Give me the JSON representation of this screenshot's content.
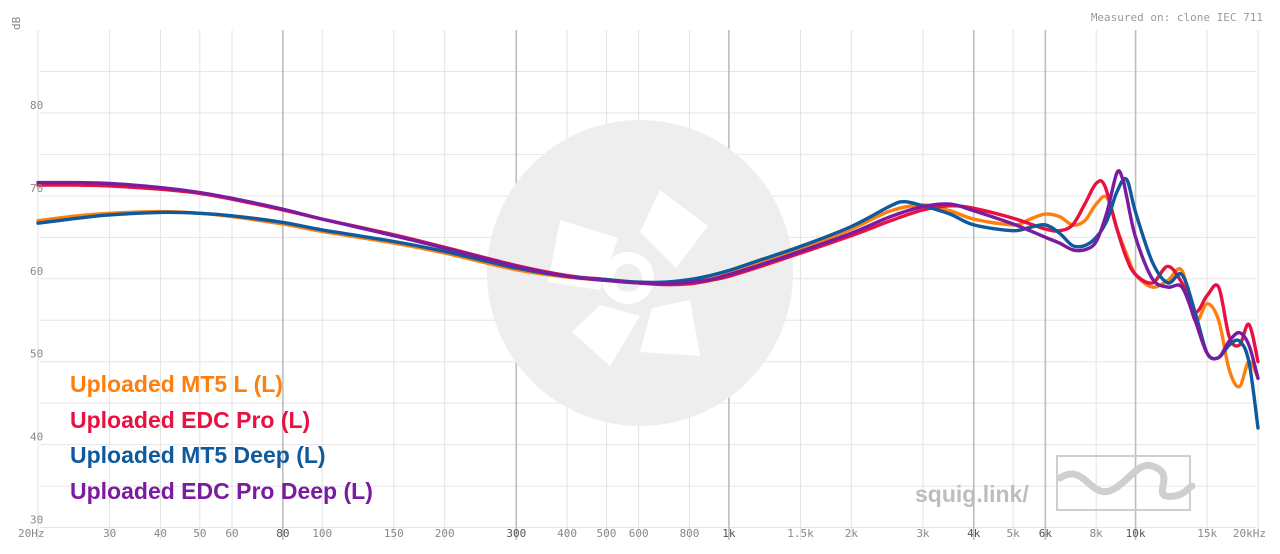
{
  "header": {
    "ylabel": "dB",
    "measured_on": "Measured on: clone IEC 711"
  },
  "brand": {
    "text": "squig.link/"
  },
  "chart_data": {
    "type": "line",
    "x_scale": "log",
    "xlim": [
      20,
      20000
    ],
    "ylim": [
      28.5,
      90
    ],
    "ylabel": "dB",
    "y_ticks": [
      30,
      40,
      50,
      60,
      70,
      80
    ],
    "x_ticks": [
      {
        "value": 20,
        "label": "20Hz",
        "bold": false
      },
      {
        "value": 30,
        "label": "30",
        "bold": false
      },
      {
        "value": 40,
        "label": "40",
        "bold": false
      },
      {
        "value": 50,
        "label": "50",
        "bold": false
      },
      {
        "value": 60,
        "label": "60",
        "bold": false
      },
      {
        "value": 80,
        "label": "80",
        "bold": true
      },
      {
        "value": 100,
        "label": "100",
        "bold": false
      },
      {
        "value": 150,
        "label": "150",
        "bold": false
      },
      {
        "value": 200,
        "label": "200",
        "bold": false
      },
      {
        "value": 300,
        "label": "300",
        "bold": true
      },
      {
        "value": 400,
        "label": "400",
        "bold": false
      },
      {
        "value": 500,
        "label": "500",
        "bold": false
      },
      {
        "value": 600,
        "label": "600",
        "bold": false
      },
      {
        "value": 800,
        "label": "800",
        "bold": false
      },
      {
        "value": 1000,
        "label": "1k",
        "bold": true
      },
      {
        "value": 1500,
        "label": "1.5k",
        "bold": false
      },
      {
        "value": 2000,
        "label": "2k",
        "bold": false
      },
      {
        "value": 3000,
        "label": "3k",
        "bold": false
      },
      {
        "value": 4000,
        "label": "4k",
        "bold": true
      },
      {
        "value": 5000,
        "label": "5k",
        "bold": false
      },
      {
        "value": 6000,
        "label": "6k",
        "bold": true
      },
      {
        "value": 8000,
        "label": "8k",
        "bold": false
      },
      {
        "value": 10000,
        "label": "10k",
        "bold": true
      },
      {
        "value": 15000,
        "label": "15k",
        "bold": false
      },
      {
        "value": 20000,
        "label": "20kHz",
        "bold": false
      }
    ],
    "series": [
      {
        "name": "Uploaded MT5 L (L)",
        "color": "#ff7f0e",
        "points": [
          [
            20,
            67
          ],
          [
            25,
            67.6
          ],
          [
            30,
            67.9
          ],
          [
            40,
            68.1
          ],
          [
            50,
            67.9
          ],
          [
            60,
            67.5
          ],
          [
            80,
            66.6
          ],
          [
            100,
            65.7
          ],
          [
            150,
            64.3
          ],
          [
            200,
            63.1
          ],
          [
            300,
            61.1
          ],
          [
            400,
            60.2
          ],
          [
            500,
            59.8
          ],
          [
            600,
            59.5
          ],
          [
            700,
            59.4
          ],
          [
            800,
            59.6
          ],
          [
            900,
            60.0
          ],
          [
            1000,
            60.6
          ],
          [
            1200,
            62.0
          ],
          [
            1500,
            63.6
          ],
          [
            2000,
            66.0
          ],
          [
            2500,
            68.2
          ],
          [
            3000,
            68.9
          ],
          [
            3500,
            68.2
          ],
          [
            4000,
            67.2
          ],
          [
            5000,
            66.5
          ],
          [
            5500,
            67.2
          ],
          [
            6000,
            67.8
          ],
          [
            6500,
            67.5
          ],
          [
            7000,
            66.5
          ],
          [
            7500,
            67.0
          ],
          [
            8000,
            69.0
          ],
          [
            8500,
            69.8
          ],
          [
            9000,
            66.0
          ],
          [
            9500,
            63.0
          ],
          [
            10000,
            60.5
          ],
          [
            11000,
            59.0
          ],
          [
            12000,
            59.8
          ],
          [
            13000,
            61.0
          ],
          [
            14000,
            55.0
          ],
          [
            15000,
            57.0
          ],
          [
            16000,
            55.0
          ],
          [
            17000,
            49.0
          ],
          [
            18000,
            47.0
          ],
          [
            19000,
            50.0
          ],
          [
            20000,
            48.0
          ]
        ]
      },
      {
        "name": "Uploaded EDC Pro (L)",
        "color": "#e8113f",
        "points": [
          [
            20,
            71.3
          ],
          [
            25,
            71.3
          ],
          [
            30,
            71.2
          ],
          [
            40,
            70.8
          ],
          [
            50,
            70.3
          ],
          [
            60,
            69.6
          ],
          [
            80,
            68.3
          ],
          [
            100,
            67.2
          ],
          [
            150,
            65.3
          ],
          [
            200,
            63.8
          ],
          [
            300,
            61.6
          ],
          [
            400,
            60.4
          ],
          [
            500,
            59.9
          ],
          [
            600,
            59.5
          ],
          [
            700,
            59.3
          ],
          [
            800,
            59.4
          ],
          [
            900,
            59.8
          ],
          [
            1000,
            60.3
          ],
          [
            1200,
            61.5
          ],
          [
            1500,
            63.1
          ],
          [
            2000,
            65.2
          ],
          [
            2500,
            67.0
          ],
          [
            3000,
            68.3
          ],
          [
            3500,
            68.8
          ],
          [
            4000,
            68.5
          ],
          [
            5000,
            67.3
          ],
          [
            6000,
            66.0
          ],
          [
            6500,
            65.8
          ],
          [
            7000,
            66.5
          ],
          [
            7500,
            69.0
          ],
          [
            8000,
            71.5
          ],
          [
            8400,
            71.2
          ],
          [
            9000,
            66.0
          ],
          [
            9500,
            62.5
          ],
          [
            10000,
            60.5
          ],
          [
            11000,
            59.5
          ],
          [
            12000,
            61.5
          ],
          [
            13000,
            59.5
          ],
          [
            14000,
            56.0
          ],
          [
            15000,
            58.0
          ],
          [
            16000,
            59.0
          ],
          [
            17000,
            53.0
          ],
          [
            18000,
            52.0
          ],
          [
            19000,
            54.5
          ],
          [
            20000,
            50.0
          ]
        ]
      },
      {
        "name": "Uploaded MT5 Deep (L)",
        "color": "#0e5a9c",
        "points": [
          [
            20,
            66.7
          ],
          [
            25,
            67.3
          ],
          [
            30,
            67.7
          ],
          [
            40,
            68.0
          ],
          [
            50,
            67.9
          ],
          [
            60,
            67.6
          ],
          [
            80,
            66.8
          ],
          [
            100,
            65.9
          ],
          [
            150,
            64.5
          ],
          [
            200,
            63.3
          ],
          [
            300,
            61.3
          ],
          [
            400,
            60.3
          ],
          [
            500,
            59.9
          ],
          [
            600,
            59.6
          ],
          [
            700,
            59.6
          ],
          [
            800,
            59.9
          ],
          [
            900,
            60.4
          ],
          [
            1000,
            61.0
          ],
          [
            1200,
            62.3
          ],
          [
            1500,
            63.9
          ],
          [
            2000,
            66.3
          ],
          [
            2500,
            68.8
          ],
          [
            2700,
            69.3
          ],
          [
            3000,
            68.8
          ],
          [
            3500,
            67.8
          ],
          [
            4000,
            66.5
          ],
          [
            5000,
            65.8
          ],
          [
            5500,
            66.2
          ],
          [
            6000,
            66.5
          ],
          [
            6500,
            65.5
          ],
          [
            7000,
            64.0
          ],
          [
            7500,
            64.0
          ],
          [
            8000,
            65.0
          ],
          [
            8500,
            67.0
          ],
          [
            9000,
            70.5
          ],
          [
            9500,
            72.0
          ],
          [
            10000,
            68.0
          ],
          [
            11000,
            62.0
          ],
          [
            12000,
            59.5
          ],
          [
            13000,
            60.5
          ],
          [
            14000,
            56.0
          ],
          [
            15000,
            51.0
          ],
          [
            16000,
            50.5
          ],
          [
            17000,
            52.0
          ],
          [
            18000,
            52.5
          ],
          [
            19000,
            50.0
          ],
          [
            20000,
            42.0
          ]
        ]
      },
      {
        "name": "Uploaded EDC Pro Deep (L)",
        "color": "#7a1ba0",
        "points": [
          [
            20,
            71.6
          ],
          [
            25,
            71.6
          ],
          [
            30,
            71.5
          ],
          [
            40,
            71.0
          ],
          [
            50,
            70.4
          ],
          [
            60,
            69.7
          ],
          [
            80,
            68.4
          ],
          [
            100,
            67.2
          ],
          [
            150,
            65.2
          ],
          [
            200,
            63.7
          ],
          [
            300,
            61.5
          ],
          [
            400,
            60.3
          ],
          [
            500,
            59.8
          ],
          [
            600,
            59.5
          ],
          [
            700,
            59.4
          ],
          [
            800,
            59.6
          ],
          [
            900,
            59.9
          ],
          [
            1000,
            60.5
          ],
          [
            1200,
            61.7
          ],
          [
            1500,
            63.3
          ],
          [
            2000,
            65.5
          ],
          [
            2500,
            67.5
          ],
          [
            3000,
            68.7
          ],
          [
            3500,
            69.0
          ],
          [
            4000,
            68.2
          ],
          [
            5000,
            66.6
          ],
          [
            5500,
            65.8
          ],
          [
            6000,
            65.0
          ],
          [
            6500,
            64.3
          ],
          [
            7000,
            63.5
          ],
          [
            7500,
            63.5
          ],
          [
            8000,
            64.5
          ],
          [
            8500,
            68.0
          ],
          [
            9000,
            72.8
          ],
          [
            9300,
            72.0
          ],
          [
            9500,
            70.0
          ],
          [
            10000,
            65.0
          ],
          [
            11000,
            60.0
          ],
          [
            12000,
            59.0
          ],
          [
            13000,
            59.0
          ],
          [
            14000,
            55.0
          ],
          [
            15000,
            51.0
          ],
          [
            16000,
            50.5
          ],
          [
            17000,
            52.5
          ],
          [
            18000,
            53.5
          ],
          [
            19000,
            52.0
          ],
          [
            20000,
            48.0
          ]
        ]
      }
    ]
  }
}
